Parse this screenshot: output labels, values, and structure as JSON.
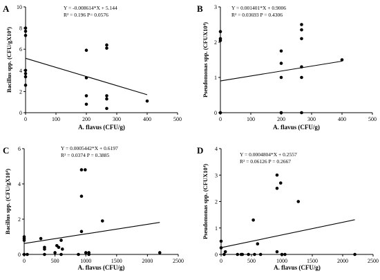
{
  "chart_data": [
    {
      "type": "scatter",
      "panel": "A",
      "xlabel": "A. flavus (CFU/g)",
      "ylabel": "Bacillus spp. (CFU/gX10⁴)",
      "xlim": [
        0,
        500
      ],
      "ylim": [
        0,
        10
      ],
      "xticks": [
        "0",
        "100",
        "200",
        "300",
        "400",
        "500"
      ],
      "yticks": [
        "0",
        "2",
        "4",
        "6",
        "8",
        "10"
      ],
      "equation": "Y = -0.008614*X + 5.144",
      "stats": "R² = 0.196   P= 0.0576",
      "regression": {
        "slope": -0.008614,
        "intercept": 5.144,
        "x_range": [
          0,
          400
        ]
      },
      "points": [
        [
          0,
          8.0
        ],
        [
          0,
          7.7
        ],
        [
          0,
          7.3
        ],
        [
          0,
          4.0
        ],
        [
          0,
          3.7
        ],
        [
          0,
          3.4
        ],
        [
          0,
          2.6
        ],
        [
          200,
          5.9
        ],
        [
          200,
          3.3
        ],
        [
          200,
          1.6
        ],
        [
          200,
          0.8
        ],
        [
          267,
          6.4
        ],
        [
          267,
          6.1
        ],
        [
          267,
          1.6
        ],
        [
          267,
          1.3
        ],
        [
          267,
          0.4
        ],
        [
          400,
          1.1
        ]
      ]
    },
    {
      "type": "scatter",
      "panel": "B",
      "xlabel": "A. flavus (CFU/g)",
      "ylabel": "Pseudomonas spp. (CFUX10⁴)",
      "xlim": [
        0,
        500
      ],
      "ylim": [
        0,
        3
      ],
      "xticks": [
        "0",
        "100",
        "200",
        "300",
        "400",
        "500"
      ],
      "yticks": [
        "0",
        "1",
        "2",
        "3"
      ],
      "equation": "Y = 0.001401*X + 0.9006",
      "stats": "R² = 0.03693   P = 0.4306",
      "regression": {
        "slope": 0.001401,
        "intercept": 0.9006,
        "x_range": [
          0,
          400
        ]
      },
      "points": [
        [
          0,
          2.3
        ],
        [
          0,
          2.1
        ],
        [
          0,
          2.05
        ],
        [
          0,
          0.0
        ],
        [
          200,
          1.75
        ],
        [
          200,
          1.4
        ],
        [
          200,
          1.0
        ],
        [
          200,
          0.0
        ],
        [
          267,
          2.5
        ],
        [
          267,
          2.35
        ],
        [
          267,
          2.1
        ],
        [
          267,
          1.3
        ],
        [
          267,
          1.0
        ],
        [
          267,
          0.0
        ],
        [
          400,
          1.5
        ]
      ]
    },
    {
      "type": "scatter",
      "panel": "C",
      "xlabel": "A. flavus (CFU/g)",
      "ylabel": "Bacillus spp. (CFU/gX10⁴)",
      "xlim": [
        0,
        2500
      ],
      "ylim": [
        0,
        6
      ],
      "xticks": [
        "0",
        "500",
        "1000",
        "1500",
        "2000",
        "2500"
      ],
      "yticks": [
        "0",
        "2",
        "4",
        "6"
      ],
      "equation": "Y = 0.0005442*X + 0.6197",
      "stats": "R² = 0.0374   P = 0.3885",
      "regression": {
        "slope": 0.0005442,
        "intercept": 0.6197,
        "x_range": [
          0,
          2200
        ]
      },
      "points": [
        [
          0,
          1.0
        ],
        [
          0,
          0.9
        ],
        [
          0,
          0.8
        ],
        [
          0,
          0.0
        ],
        [
          50,
          0.0
        ],
        [
          270,
          0.9
        ],
        [
          330,
          0.4
        ],
        [
          330,
          0.3
        ],
        [
          330,
          0.0
        ],
        [
          500,
          0.1
        ],
        [
          530,
          0.5
        ],
        [
          560,
          0.4
        ],
        [
          600,
          0.8
        ],
        [
          620,
          0.3
        ],
        [
          600,
          0.0
        ],
        [
          880,
          0.0
        ],
        [
          930,
          4.8
        ],
        [
          930,
          3.3
        ],
        [
          930,
          1.3
        ],
        [
          990,
          4.8
        ],
        [
          1000,
          0.1
        ],
        [
          1050,
          0.1
        ],
        [
          1050,
          0.0
        ],
        [
          1270,
          1.9
        ],
        [
          2200,
          0.1
        ]
      ]
    },
    {
      "type": "scatter",
      "panel": "D",
      "xlabel": "A. flavus (CFU/g)",
      "ylabel": "Pseudomonas spp. (CFUX10⁴)",
      "xlim": [
        0,
        2500
      ],
      "ylim": [
        0,
        4
      ],
      "xticks": [
        "0",
        "500",
        "1000",
        "1500",
        "2000",
        "2500"
      ],
      "yticks": [
        "0",
        "1",
        "2",
        "3",
        "4"
      ],
      "equation": "Y = 0.0004804*X + 0.2557",
      "stats": "R² = 0.06126   P = 0.2667",
      "regression": {
        "slope": 0.0004804,
        "intercept": 0.2557,
        "x_range": [
          0,
          2200
        ]
      },
      "points": [
        [
          0,
          0.5
        ],
        [
          0,
          0.25
        ],
        [
          50,
          0.0
        ],
        [
          70,
          0.1
        ],
        [
          270,
          0.0
        ],
        [
          330,
          0.0
        ],
        [
          350,
          0.0
        ],
        [
          450,
          0.0
        ],
        [
          530,
          1.3
        ],
        [
          550,
          0.0
        ],
        [
          600,
          0.4
        ],
        [
          650,
          0.0
        ],
        [
          920,
          3.0
        ],
        [
          920,
          2.5
        ],
        [
          920,
          0.1
        ],
        [
          980,
          2.7
        ],
        [
          1000,
          0.0
        ],
        [
          1050,
          0.0
        ],
        [
          1270,
          2.0
        ],
        [
          2200,
          0.0
        ]
      ]
    }
  ]
}
